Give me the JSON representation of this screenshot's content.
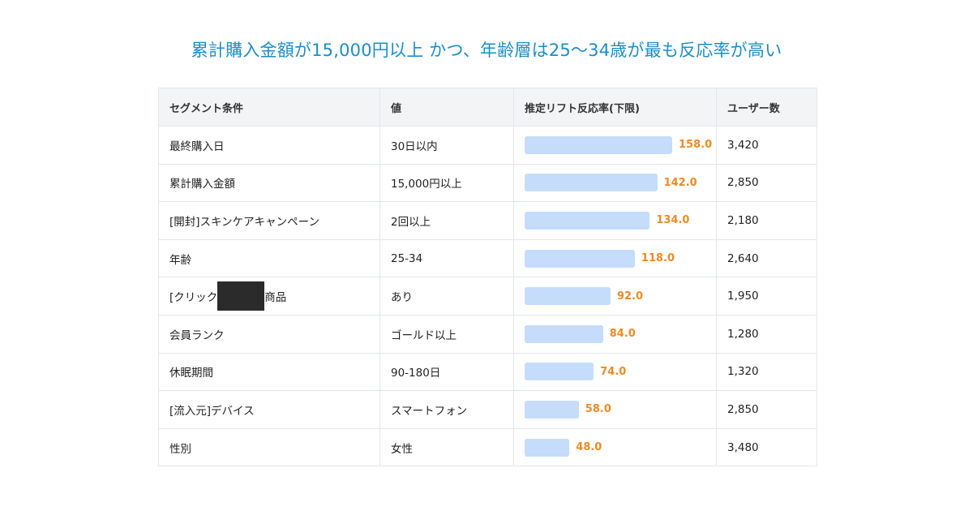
{
  "headline": "累計購入金額が15,000円以上 かつ、年齢層は25〜34歳が最も反応率が高い",
  "colors": {
    "headline": "#1b8ec9",
    "bar": "#c5dcfb",
    "value": "#f08a24"
  },
  "table": {
    "headers": [
      "セグメント条件",
      "値",
      "推定リフト反応率(下限)",
      "ユーザー数"
    ],
    "max_lift": 158.0,
    "rows": [
      {
        "condition": "最終購入日",
        "value": "30日以内",
        "lift": 158.0,
        "lift_label": "158.0",
        "users": "3,420"
      },
      {
        "condition": "累計購入金額",
        "value": "15,000円以上",
        "lift": 142.0,
        "lift_label": "142.0",
        "users": "2,850"
      },
      {
        "condition": "[開封]スキンケアキャンペーン",
        "value": "2回以上",
        "lift": 134.0,
        "lift_label": "134.0",
        "users": "2,180"
      },
      {
        "condition": "年齢",
        "value": "25-34",
        "lift": 118.0,
        "lift_label": "118.0",
        "users": "2,640"
      },
      {
        "condition": "[クリック",
        "condition_after": "商品",
        "redacted": true,
        "value": "あり",
        "lift": 92.0,
        "lift_label": "92.0",
        "users": "1,950"
      },
      {
        "condition": "会員ランク",
        "value": "ゴールド以上",
        "lift": 84.0,
        "lift_label": "84.0",
        "users": "1,280"
      },
      {
        "condition": "休眠期間",
        "value": "90-180日",
        "lift": 74.0,
        "lift_label": "74.0",
        "users": "1,320"
      },
      {
        "condition": "[流入元]デバイス",
        "value": "スマートフォン",
        "lift": 58.0,
        "lift_label": "58.0",
        "users": "2,850"
      },
      {
        "condition": "性別",
        "value": "女性",
        "lift": 48.0,
        "lift_label": "48.0",
        "users": "3,480"
      }
    ]
  }
}
